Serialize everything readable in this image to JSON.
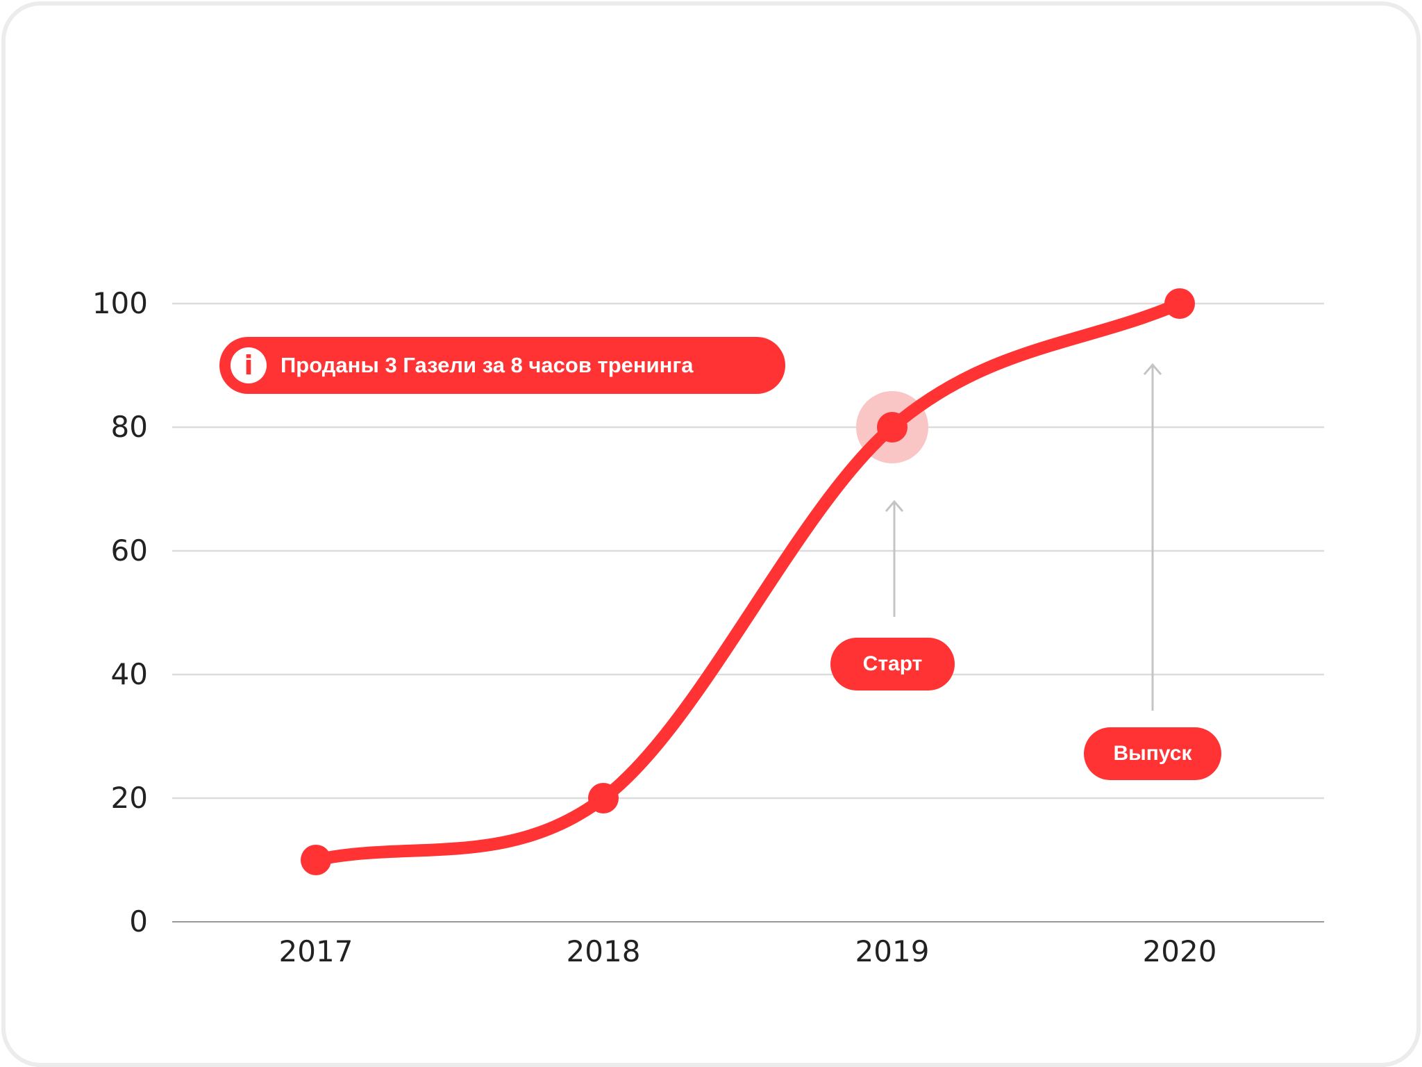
{
  "chart_data": {
    "type": "line",
    "categories": [
      "2017",
      "2018",
      "2019",
      "2020"
    ],
    "values": [
      10,
      20,
      80,
      100
    ],
    "ylim": [
      0,
      100
    ],
    "yticks": [
      "0",
      "20",
      "40",
      "60",
      "80",
      "100"
    ],
    "grid": true,
    "highlighted_point": "2019",
    "line_color": "#ff3333",
    "highlight_color": "#f9c5c5"
  },
  "annotations": {
    "info": {
      "text": "Проданы 3 Газели за 8 часов тренинга",
      "icon": "info-icon"
    },
    "start": {
      "label": "Старт",
      "at": "2019"
    },
    "release": {
      "label": "Выпуск",
      "at": "2020"
    }
  }
}
